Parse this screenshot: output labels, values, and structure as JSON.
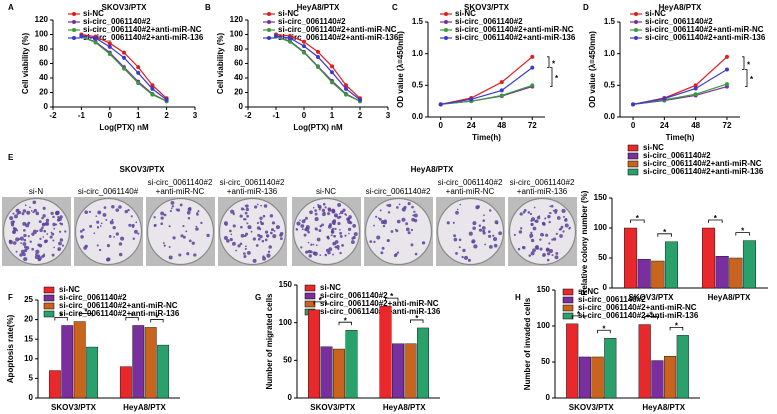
{
  "colony_panel": {
    "panel": "E",
    "groups": [
      {
        "title": "SKOV3/PTX",
        "labels": [
          [
            "si-N"
          ],
          [
            "si-circ_0061140#"
          ],
          [
            "si-circ_0061140#2",
            "+anti-miR-NC"
          ],
          [
            "si-circ_0061140#2",
            "+anti-miR-136"
          ]
        ]
      },
      {
        "title": "HeyA8/PTX",
        "labels": [
          [
            "si-NC"
          ],
          [
            "si-circ_0061140#2"
          ],
          [
            "si-circ_0061140#2",
            "+anti-miR-NC"
          ],
          [
            "si-circ_0061140#2",
            "+anti-miR-136"
          ]
        ]
      }
    ]
  },
  "chart_data": [
    {
      "type": "line",
      "panel": "A",
      "title": "SKOV3/PTX",
      "x_label": "Log(PTX) nM",
      "y_label": "Cell viability (%)",
      "x": [
        -1,
        -0.5,
        0,
        0.5,
        1,
        1.5,
        2
      ],
      "xlim": [
        -2,
        3
      ],
      "xticks": [
        -2,
        -1,
        0,
        1,
        2,
        3
      ],
      "ylim": [
        0,
        120
      ],
      "yticks": [
        0,
        20,
        40,
        60,
        80,
        100,
        120
      ],
      "series": [
        {
          "name": "si-NC",
          "color": "#e41a1c",
          "values": [
            100,
            97,
            88,
            75,
            55,
            30,
            12
          ]
        },
        {
          "name": "si-circ_0061140#2",
          "color": "#7b2f9e",
          "values": [
            97,
            90,
            75,
            55,
            35,
            18,
            8
          ]
        },
        {
          "name": "si-circ_0061140#2+anti-miR-NC",
          "color": "#3a9a3a",
          "values": [
            97,
            89,
            73,
            53,
            33,
            17,
            8
          ]
        },
        {
          "name": "si-circ_0061140#2+anti-miR-136",
          "color": "#3a3ad0",
          "values": [
            98,
            95,
            83,
            68,
            47,
            25,
            10
          ]
        }
      ]
    },
    {
      "type": "line",
      "panel": "B",
      "title": "HeyA8/PTX",
      "x_label": "Log(PTX) nM",
      "y_label": "Cell viability (%)",
      "x": [
        -1,
        -0.5,
        0,
        0.5,
        1,
        1.5,
        2
      ],
      "xlim": [
        -2,
        3
      ],
      "xticks": [
        -2,
        -1,
        0,
        1,
        2,
        3
      ],
      "ylim": [
        0,
        120
      ],
      "yticks": [
        0,
        20,
        40,
        60,
        80,
        100,
        120
      ],
      "series": [
        {
          "name": "si-NC",
          "color": "#e41a1c",
          "values": [
            100,
            98,
            90,
            76,
            56,
            30,
            12
          ]
        },
        {
          "name": "si-circ_0061140#2",
          "color": "#7b2f9e",
          "values": [
            97,
            91,
            76,
            56,
            36,
            18,
            8
          ]
        },
        {
          "name": "si-circ_0061140#2+anti-miR-NC",
          "color": "#3a9a3a",
          "values": [
            97,
            90,
            75,
            55,
            34,
            17,
            8
          ]
        },
        {
          "name": "si-circ_0061140#2+anti-miR-136",
          "color": "#3a3ad0",
          "values": [
            98,
            95,
            84,
            69,
            48,
            25,
            10
          ]
        }
      ]
    },
    {
      "type": "line",
      "panel": "C",
      "title": "SKOV3/PTX",
      "x_label": "Time(h)",
      "y_label": "OD value (λ=450nm)",
      "x": [
        0,
        24,
        48,
        72
      ],
      "xlim": [
        -10,
        82
      ],
      "xticks": [
        0,
        24,
        48,
        72
      ],
      "ylim": [
        0,
        1.5
      ],
      "yticks": [
        {
          "value": 0,
          "label": "0.0"
        },
        {
          "value": 0.5,
          "label": "0.5"
        },
        {
          "value": 1,
          "label": "1.0"
        },
        {
          "value": 1.5,
          "label": "1.5"
        }
      ],
      "annotations": [
        "*",
        "*"
      ],
      "series": [
        {
          "name": "si-NC",
          "color": "#e41a1c",
          "values": [
            0.2,
            0.3,
            0.55,
            0.95
          ]
        },
        {
          "name": "si-circ_0061140#2",
          "color": "#7b2f9e",
          "values": [
            0.2,
            0.25,
            0.33,
            0.48
          ]
        },
        {
          "name": "si-circ_0061140#2+anti-miR-NC",
          "color": "#3a9a3a",
          "values": [
            0.2,
            0.25,
            0.34,
            0.5
          ]
        },
        {
          "name": "si-circ_0061140#2+anti-miR-136",
          "color": "#3a3ad0",
          "values": [
            0.2,
            0.28,
            0.42,
            0.78
          ]
        }
      ]
    },
    {
      "type": "line",
      "panel": "D",
      "title": "HeyA8/PTX",
      "x_label": "Time(h)",
      "y_label": "OD value (λ=450nm)",
      "x": [
        0,
        24,
        48,
        72
      ],
      "xlim": [
        -10,
        82
      ],
      "xticks": [
        0,
        24,
        48,
        72
      ],
      "ylim": [
        0,
        1.5
      ],
      "yticks": [
        {
          "value": 0,
          "label": "0.0"
        },
        {
          "value": 0.5,
          "label": "0.5"
        },
        {
          "value": 1,
          "label": "1.0"
        },
        {
          "value": 1.5,
          "label": "1.5"
        }
      ],
      "annotations": [
        "*",
        "*"
      ],
      "series": [
        {
          "name": "si-NC",
          "color": "#e41a1c",
          "values": [
            0.2,
            0.3,
            0.5,
            0.95
          ]
        },
        {
          "name": "si-circ_0061140#2",
          "color": "#7b2f9e",
          "values": [
            0.2,
            0.26,
            0.34,
            0.48
          ]
        },
        {
          "name": "si-circ_0061140#2+anti-miR-NC",
          "color": "#3a9a3a",
          "values": [
            0.2,
            0.27,
            0.36,
            0.52
          ]
        },
        {
          "name": "si-circ_0061140#2+anti-miR-136",
          "color": "#3a3ad0",
          "values": [
            0.2,
            0.29,
            0.45,
            0.75
          ]
        }
      ]
    },
    {
      "type": "bar",
      "y_label": "Relative colony number (%)",
      "categories": [
        "SKOV3/PTX",
        "HeyA8/PTX"
      ],
      "ylim": [
        0,
        150
      ],
      "yticks": [
        0,
        50,
        100,
        150
      ],
      "annotations": [
        "*",
        "*",
        "*",
        "*"
      ],
      "series": [
        {
          "name": "si-NC",
          "color": "#e8282b",
          "values": [
            100,
            100
          ]
        },
        {
          "name": "si-circ_0061140#2",
          "color": "#7a2f9f",
          "values": [
            48,
            53
          ]
        },
        {
          "name": "si-circ_0061140#2+anti-miR-NC",
          "color": "#c8641e",
          "values": [
            45,
            50
          ]
        },
        {
          "name": "si-circ_0061140#2+anti-miR-136",
          "color": "#2aa06a",
          "values": [
            77,
            79
          ]
        }
      ]
    },
    {
      "type": "bar",
      "panel": "F",
      "y_label": "Apoptosis rate(%)",
      "categories": [
        "SKOV3/PTX",
        "HeyA8/PTX"
      ],
      "ylim": [
        0,
        25
      ],
      "yticks": [
        0,
        5,
        10,
        15,
        20,
        25
      ],
      "annotations": [
        "*",
        "*",
        "*",
        "*"
      ],
      "series": [
        {
          "name": "si-NC",
          "color": "#e8282b",
          "values": [
            7,
            8
          ]
        },
        {
          "name": "si-circ_0061140#2",
          "color": "#7a2f9f",
          "values": [
            18.5,
            18.5
          ]
        },
        {
          "name": "si-circ_0061140#2+anti-miR-NC",
          "color": "#c8641e",
          "values": [
            19.5,
            18
          ]
        },
        {
          "name": "si-circ_0061140#2+anti-miR-136",
          "color": "#2aa06a",
          "values": [
            13,
            13.5
          ]
        }
      ]
    },
    {
      "type": "bar",
      "panel": "G",
      "y_label": "Number of migrated cells",
      "categories": [
        "SKOV3/PTX",
        "HeyA8/PTX"
      ],
      "ylim": [
        0,
        150
      ],
      "yticks": [
        0,
        50,
        100,
        150
      ],
      "annotations": [
        "*",
        "*",
        "*",
        "*"
      ],
      "series": [
        {
          "name": "si-NC",
          "color": "#e8282b",
          "values": [
            117,
            122
          ]
        },
        {
          "name": "si-circ_0061140#2",
          "color": "#7a2f9f",
          "values": [
            68,
            72
          ]
        },
        {
          "name": "si-circ_0061140#2+anti-miR-NC",
          "color": "#c8641e",
          "values": [
            65,
            72
          ]
        },
        {
          "name": "si-circ_0061140#2+anti-miR-136",
          "color": "#2aa06a",
          "values": [
            90,
            93
          ]
        }
      ]
    },
    {
      "type": "bar",
      "panel": "H",
      "y_label": "Number of invaded cells",
      "categories": [
        "SKOV3/PTX",
        "HeyA8/PTX"
      ],
      "ylim": [
        0,
        150
      ],
      "yticks": [
        0,
        50,
        100,
        150
      ],
      "annotations": [
        "*",
        "*",
        "*",
        "*"
      ],
      "series": [
        {
          "name": "si-NC",
          "color": "#e8282b",
          "values": [
            103,
            102
          ]
        },
        {
          "name": "si-circ_0061140#2",
          "color": "#7a2f9f",
          "values": [
            57,
            52
          ]
        },
        {
          "name": "si-circ_0061140#2+anti-miR-NC",
          "color": "#c8641e",
          "values": [
            57,
            58
          ]
        },
        {
          "name": "si-circ_0061140#2+anti-miR-136",
          "color": "#2aa06a",
          "values": [
            83,
            87
          ]
        }
      ]
    }
  ]
}
